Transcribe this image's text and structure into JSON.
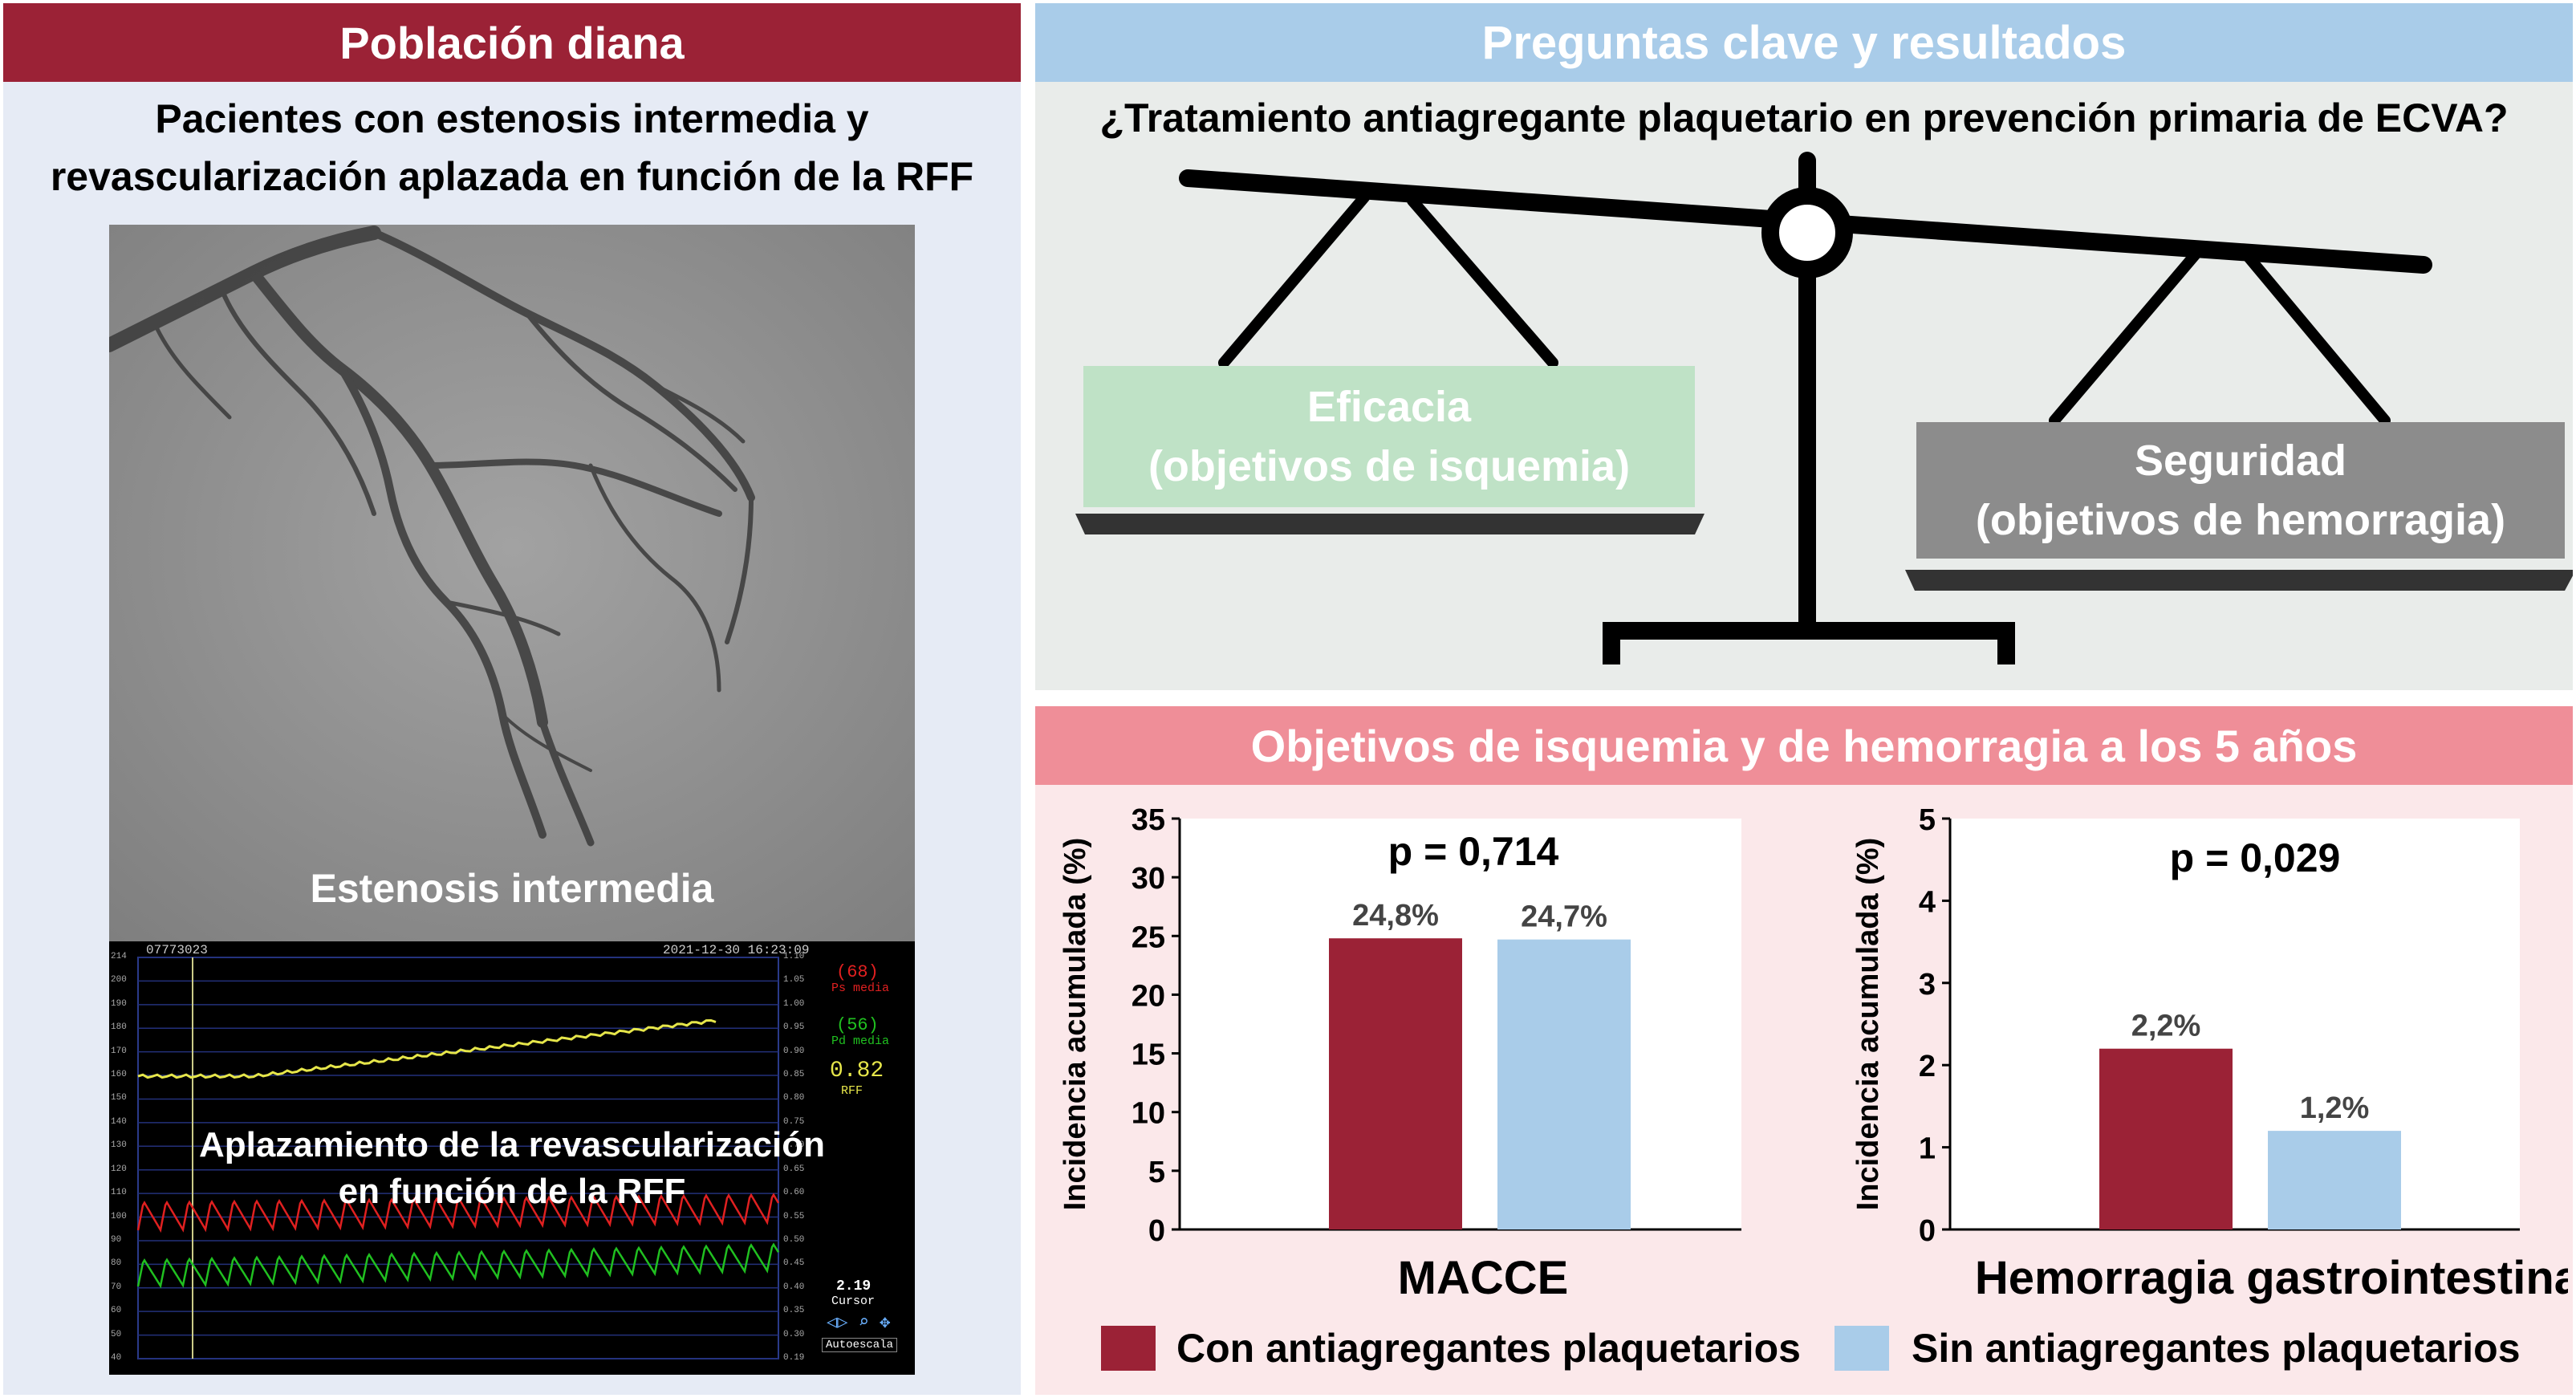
{
  "left": {
    "header": "Población diana",
    "subtitle_line1": "Pacientes con estenosis intermedia y",
    "subtitle_line2": "revascularización aplazada en función de la RFF",
    "angio_label": "Estenosis intermedia",
    "monitor_label_line1": "Aplazamiento de la revascularización",
    "monitor_label_line2": "en función de la RFF",
    "monitor": {
      "patient_id": "07773023",
      "timestamp": "2021-12-30 16:23:09",
      "ps_value": "(68)",
      "ps_label": "Ps media",
      "pd_value": "(56)",
      "pd_label": "Pd media",
      "rff_value": "0.82",
      "rff_label": "RFF",
      "cursor_value": "2.19",
      "cursor_label": "Cursor",
      "autoscale_label": "Autoescala",
      "left_ticks": [
        "214",
        "200",
        "190",
        "180",
        "170",
        "160",
        "150",
        "140",
        "130",
        "120",
        "110",
        "100",
        "90",
        "80",
        "70",
        "60",
        "50",
        "40"
      ],
      "right_ticks": [
        "1.10",
        "1.05",
        "1.00",
        "0.95",
        "0.90",
        "0.85",
        "0.80",
        "0.75",
        "0.70",
        "0.65",
        "0.60",
        "0.55",
        "0.50",
        "0.45",
        "0.40",
        "0.35",
        "0.30",
        "0.19"
      ]
    }
  },
  "right": {
    "header": "Preguntas clave y resultados",
    "question": "¿Tratamiento antiagregante plaquetario en prevención primaria de ECVA?",
    "eficacia_line1": "Eficacia",
    "eficacia_line2": "(objetivos de isquemia)",
    "seguridad_line1": "Seguridad",
    "seguridad_line2": "(objetivos de hemorragia)"
  },
  "results": {
    "header": "Objetivos de isquemia y de hemorragia a los 5 años",
    "legend": [
      "Con antiagregantes plaquetarios",
      "Sin antiagregantes plaquetarios"
    ]
  },
  "colors": {
    "con": "#9b2236",
    "sin": "#a9cce9"
  },
  "chart_data": [
    {
      "type": "bar",
      "title": "MACCE",
      "ylabel": "Incidencia acumulada (%)",
      "ylim": [
        0,
        35
      ],
      "yticks": [
        0,
        5,
        10,
        15,
        20,
        25,
        30,
        35
      ],
      "annotation": "p = 0,714",
      "series": [
        {
          "name": "Con antiagregantes plaquetarios",
          "values": [
            24.8
          ],
          "labels": [
            "24,8%"
          ]
        },
        {
          "name": "Sin antiagregantes plaquetarios",
          "values": [
            24.7
          ],
          "labels": [
            "24,7%"
          ]
        }
      ]
    },
    {
      "type": "bar",
      "title": "Hemorragia gastrointestinal",
      "ylabel": "Incidencia acumulada (%)",
      "ylim": [
        0,
        5
      ],
      "yticks": [
        0,
        1,
        2,
        3,
        4,
        5
      ],
      "annotation": "p = 0,029",
      "series": [
        {
          "name": "Con antiagregantes plaquetarios",
          "values": [
            2.2
          ],
          "labels": [
            "2,2%"
          ]
        },
        {
          "name": "Sin antiagregantes plaquetarios",
          "values": [
            1.2
          ],
          "labels": [
            "1,2%"
          ]
        }
      ]
    }
  ]
}
